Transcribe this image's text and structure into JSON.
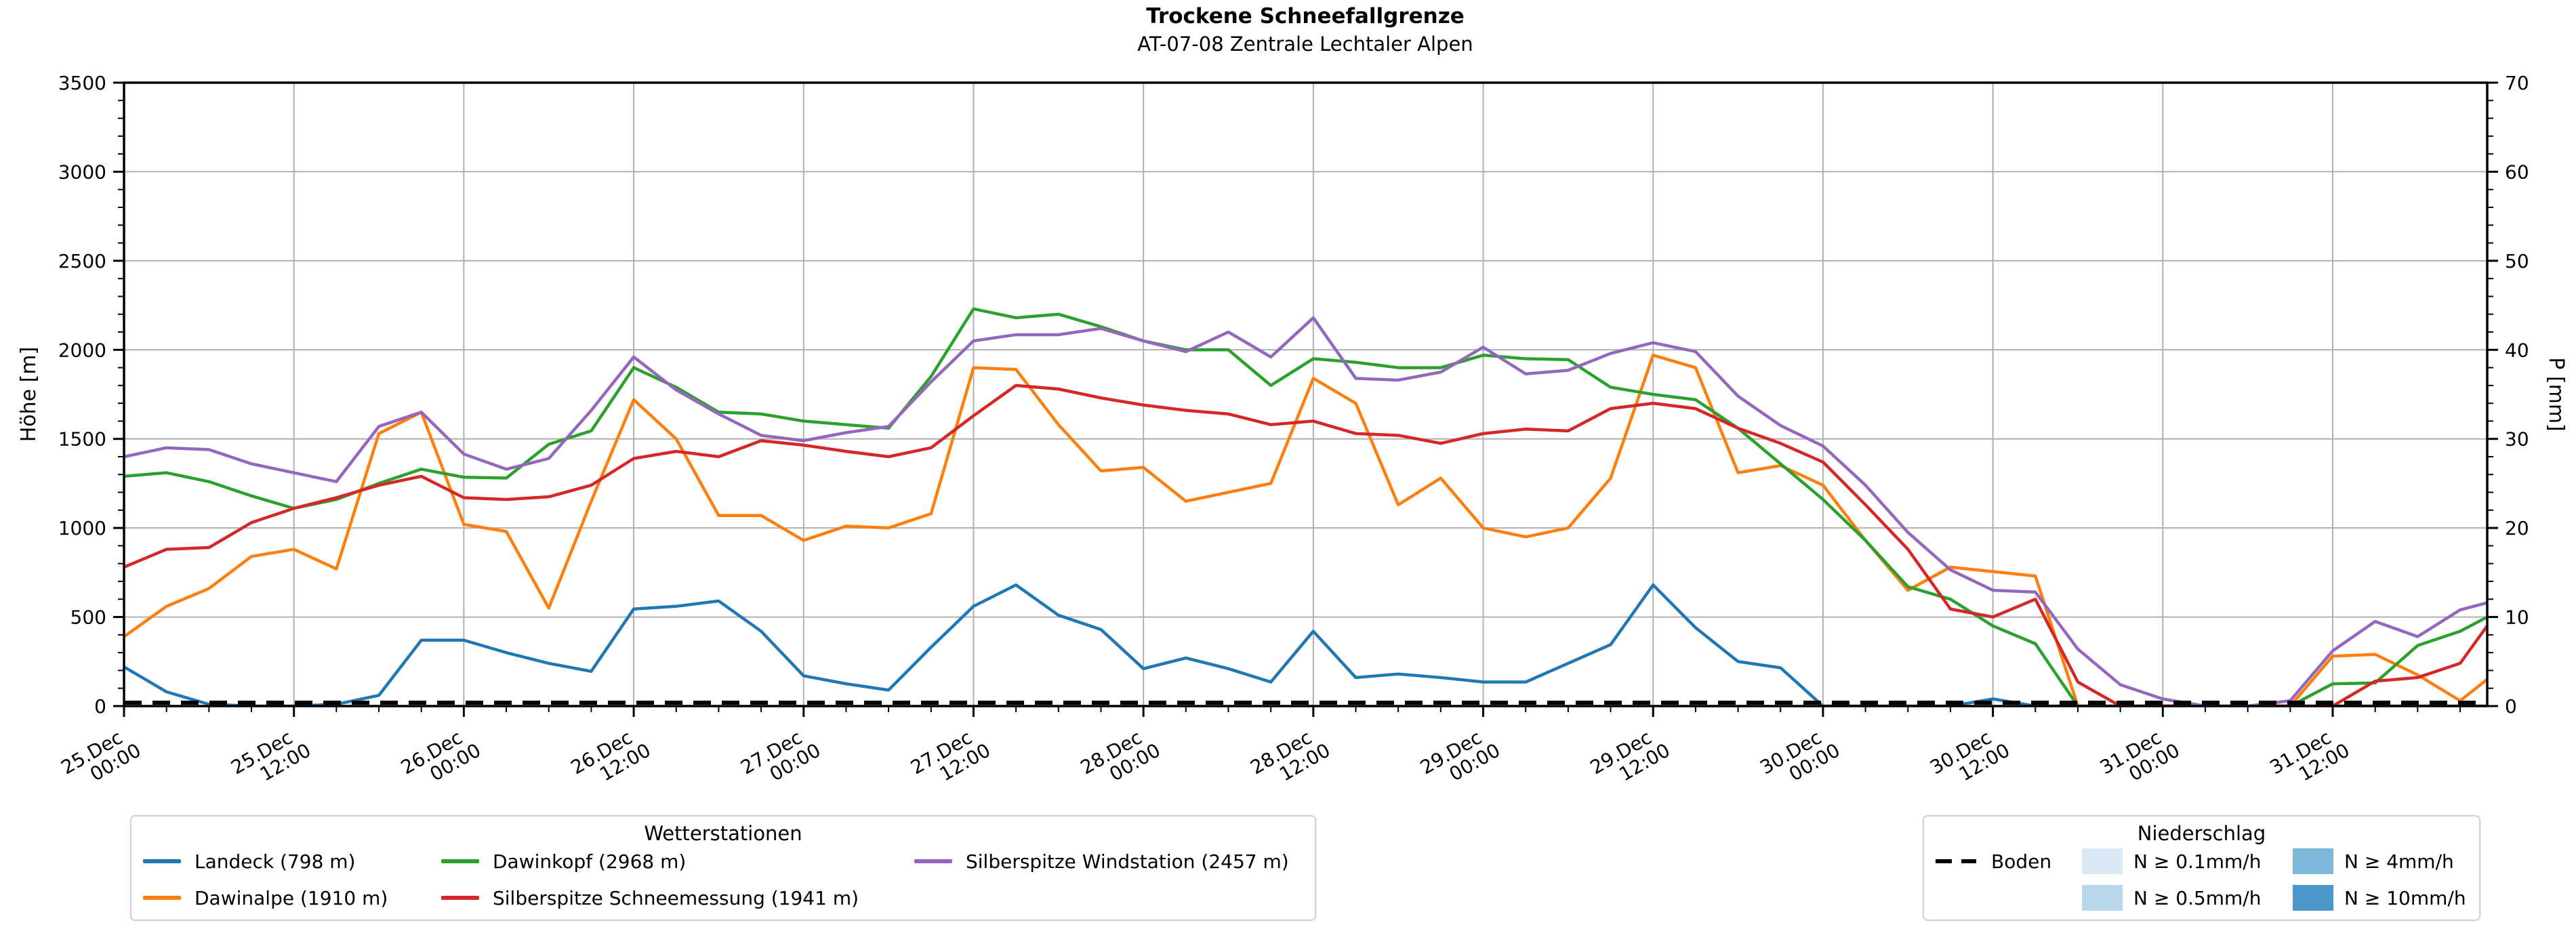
{
  "title": "Trockene Schneefallgrenze",
  "subtitle": "AT-07-08 Zentrale Lechtaler Alpen",
  "axes": {
    "y_left_label": "Höhe [m]",
    "y_right_label": "P [mm]",
    "y_left_ticks": [
      0,
      500,
      1000,
      1500,
      2000,
      2500,
      3000,
      3500
    ],
    "y_right_ticks": [
      0,
      10,
      20,
      30,
      40,
      50,
      60,
      70
    ],
    "x_tick_labels": [
      "25.Dec|00:00",
      "25.Dec|12:00",
      "26.Dec|00:00",
      "26.Dec|12:00",
      "27.Dec|00:00",
      "27.Dec|12:00",
      "28.Dec|00:00",
      "28.Dec|12:00",
      "29.Dec|00:00",
      "29.Dec|12:00",
      "30.Dec|00:00",
      "30.Dec|12:00",
      "31.Dec|00:00",
      "31.Dec|12:00"
    ]
  },
  "legend_stations": {
    "title": "Wetterstationen",
    "items": [
      {
        "label": "Landeck (798 m)",
        "color": "#1f77b4"
      },
      {
        "label": "Dawinalpe (1910 m)",
        "color": "#ff7f0e"
      },
      {
        "label": "Dawinkopf (2968 m)",
        "color": "#2ca02c"
      },
      {
        "label": "Silberspitze Schneemessung (1941 m)",
        "color": "#d62728"
      },
      {
        "label": "Silberspitze Windstation (2457 m)",
        "color": "#9467bd"
      }
    ]
  },
  "legend_precip": {
    "title": "Niederschlag",
    "boden": {
      "label": "Boden",
      "color": "#000000"
    },
    "items": [
      {
        "label": "N ≥ 0.1mm/h",
        "color": "#dbe9f6"
      },
      {
        "label": "N ≥ 0.5mm/h",
        "color": "#bad6eb"
      },
      {
        "label": "N ≥ 4mm/h",
        "color": "#7db8da"
      },
      {
        "label": "N ≥ 10mm/h",
        "color": "#4a97c9"
      }
    ]
  },
  "chart_data": {
    "type": "line",
    "title": "Trockene Schneefallgrenze",
    "subtitle": "AT-07-08 Zentrale Lechtaler Alpen",
    "ylabel": "Höhe [m]",
    "y2label": "P [mm]",
    "ylim": [
      0,
      3500
    ],
    "y2lim": [
      0,
      70
    ],
    "grid": true,
    "x_start": "25.Dec 00:00",
    "x_end": "31.Dec 23:00",
    "x_major_step_hours": 12,
    "x_minor_step_hours": 3,
    "x_hours_step": 3,
    "x_hours": [
      0,
      3,
      6,
      9,
      12,
      15,
      18,
      21,
      24,
      27,
      30,
      33,
      36,
      39,
      42,
      45,
      48,
      51,
      54,
      57,
      60,
      63,
      66,
      69,
      72,
      75,
      78,
      81,
      84,
      87,
      90,
      93,
      96,
      99,
      102,
      105,
      108,
      111,
      114,
      117,
      120,
      123,
      126,
      129,
      132,
      135,
      138,
      141,
      144,
      147,
      150,
      153,
      156,
      159,
      162,
      165,
      168
    ],
    "boden_line": {
      "label": "Boden",
      "value": 0,
      "style": "dashed",
      "color": "#000000"
    },
    "precipitation_bands": [],
    "series": [
      {
        "name": "Landeck (798 m)",
        "color": "#1f77b4",
        "values": [
          220,
          80,
          10,
          0,
          0,
          10,
          60,
          370,
          370,
          300,
          240,
          195,
          545,
          560,
          590,
          420,
          170,
          125,
          90,
          330,
          560,
          680,
          510,
          430,
          210,
          270,
          210,
          135,
          420,
          160,
          180,
          160,
          135,
          135,
          240,
          345,
          680,
          440,
          250,
          215,
          0,
          0,
          0,
          0,
          40,
          0,
          0,
          0,
          0,
          0,
          0,
          0,
          0,
          0,
          0,
          0,
          0
        ]
      },
      {
        "name": "Dawinalpe (1910 m)",
        "color": "#ff7f0e",
        "values": [
          390,
          560,
          660,
          840,
          880,
          770,
          1530,
          1650,
          1020,
          980,
          550,
          1150,
          1720,
          1500,
          1070,
          1070,
          930,
          1010,
          1000,
          1080,
          1900,
          1890,
          1580,
          1320,
          1340,
          1150,
          1200,
          1250,
          1840,
          1700,
          1130,
          1280,
          1000,
          950,
          1000,
          1280,
          1970,
          1900,
          1310,
          1350,
          1240,
          930,
          650,
          780,
          755,
          730,
          0,
          0,
          0,
          0,
          0,
          0,
          280,
          290,
          175,
          30,
          150
        ]
      },
      {
        "name": "Dawinkopf (2968 m)",
        "color": "#2ca02c",
        "values": [
          1290,
          1310,
          1260,
          1180,
          1110,
          1160,
          1250,
          1330,
          1285,
          1280,
          1470,
          1545,
          1900,
          1790,
          1650,
          1640,
          1600,
          1580,
          1560,
          1850,
          2230,
          2180,
          2200,
          2130,
          2050,
          2000,
          2000,
          1800,
          1950,
          1930,
          1900,
          1900,
          1970,
          1950,
          1945,
          1790,
          1750,
          1720,
          1560,
          1360,
          1160,
          930,
          670,
          600,
          450,
          350,
          0,
          0,
          0,
          0,
          0,
          0,
          125,
          130,
          340,
          420,
          500
        ]
      },
      {
        "name": "Silberspitze Schneemessung (1941 m)",
        "color": "#d62728",
        "values": [
          780,
          880,
          890,
          1030,
          1110,
          1170,
          1240,
          1290,
          1170,
          1160,
          1175,
          1240,
          1390,
          1430,
          1400,
          1490,
          1465,
          1430,
          1400,
          1450,
          1630,
          1800,
          1780,
          1730,
          1690,
          1660,
          1640,
          1580,
          1600,
          1530,
          1520,
          1475,
          1530,
          1555,
          1545,
          1670,
          1700,
          1670,
          1560,
          1475,
          1370,
          1130,
          880,
          545,
          500,
          600,
          135,
          0,
          0,
          0,
          0,
          0,
          0,
          140,
          160,
          240,
          450
        ]
      },
      {
        "name": "Silberspitze Windstation (2457 m)",
        "color": "#9467bd",
        "values": [
          1400,
          1450,
          1440,
          1360,
          1310,
          1260,
          1570,
          1650,
          1415,
          1330,
          1390,
          1660,
          1960,
          1775,
          1640,
          1520,
          1490,
          1535,
          1570,
          1820,
          2050,
          2085,
          2085,
          2120,
          2050,
          1990,
          2100,
          1960,
          2180,
          1840,
          1830,
          1875,
          2015,
          1865,
          1885,
          1980,
          2040,
          1990,
          1740,
          1575,
          1460,
          1240,
          975,
          765,
          650,
          640,
          320,
          120,
          40,
          0,
          0,
          30,
          310,
          475,
          390,
          540,
          580
        ]
      }
    ]
  }
}
